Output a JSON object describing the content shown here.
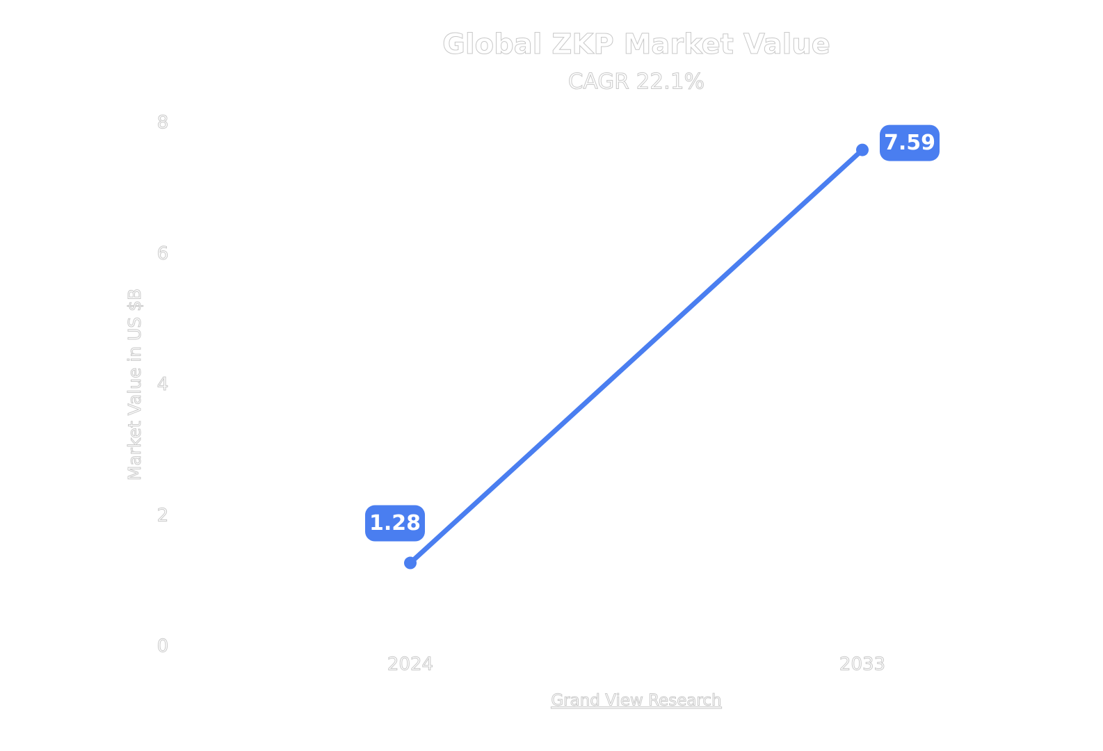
{
  "chart_data": {
    "type": "line",
    "title": "Global ZKP Market Value",
    "subtitle": "CAGR 22.1%",
    "y_label": "Market Value in US $B",
    "source": "Grand View Research",
    "categories": [
      "2024",
      "2033"
    ],
    "series": [
      {
        "name": "Market Value",
        "color": "#4a7ef0",
        "values": [
          1.28,
          7.59
        ]
      }
    ],
    "ylim": [
      0,
      8
    ],
    "yticks": [
      0,
      2,
      4,
      6,
      8
    ],
    "grid": false
  }
}
